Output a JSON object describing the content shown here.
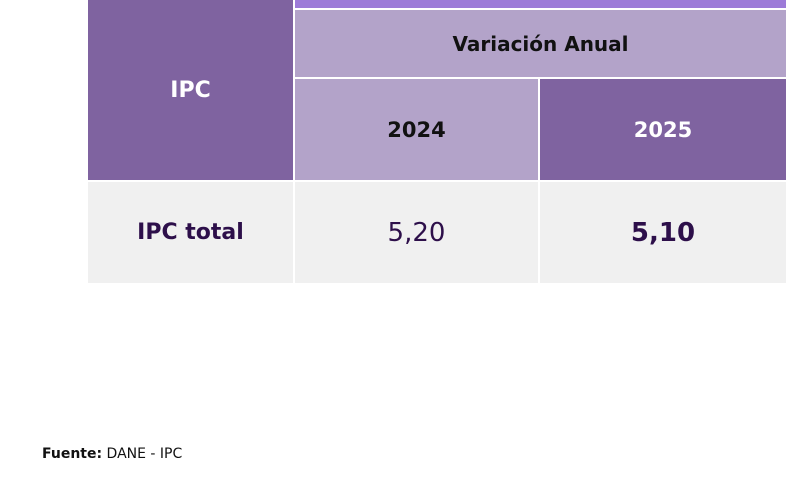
{
  "table": {
    "header": {
      "row_label": "IPC",
      "group": "Variación Anual",
      "columns": [
        "2024",
        "2025"
      ]
    },
    "rows": [
      {
        "label": "IPC total",
        "values": [
          "5,20",
          "5,10"
        ]
      }
    ]
  },
  "source": {
    "label": "Fuente:",
    "text": "DANE - IPC"
  }
}
